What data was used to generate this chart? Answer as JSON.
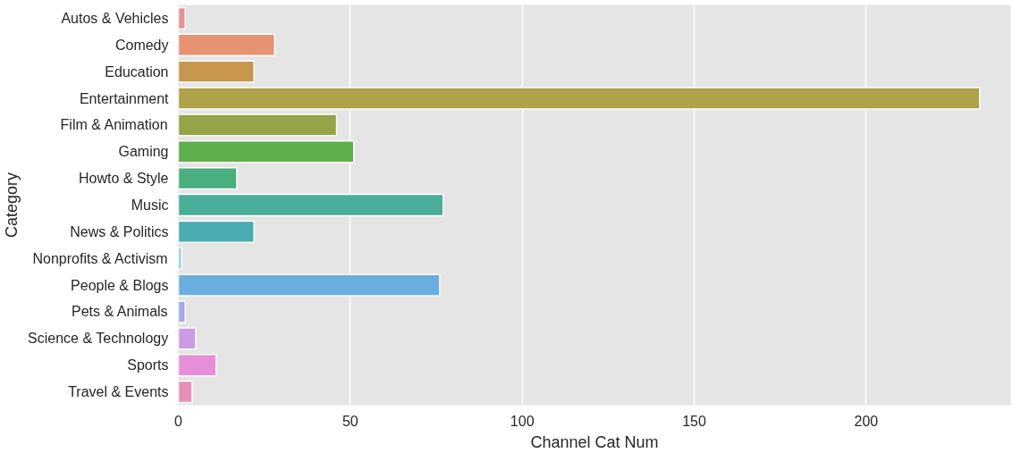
{
  "chart_data": {
    "type": "bar",
    "orientation": "horizontal",
    "xlabel": "Channel Cat Num",
    "ylabel": "Category",
    "categories": [
      "Autos & Vehicles",
      "Comedy",
      "Education",
      "Entertainment",
      "Film & Animation",
      "Gaming",
      "Howto & Style",
      "Music",
      "News & Politics",
      "Nonprofits & Activism",
      "People & Blogs",
      "Pets & Animals",
      "Science & Technology",
      "Sports",
      "Travel & Events"
    ],
    "values": [
      2,
      28,
      22,
      233,
      46,
      51,
      17,
      77,
      22,
      1,
      76,
      2,
      5,
      11,
      4
    ],
    "colors": [
      "#e8919c",
      "#e59372",
      "#c8964d",
      "#aea24a",
      "#94a446",
      "#5eae4a",
      "#4bae7f",
      "#4aae9b",
      "#4aabb0",
      "#8fd3e0",
      "#6aaee0",
      "#a9a6e9",
      "#cd9ae3",
      "#e58fd8",
      "#e591b7"
    ],
    "xlim": [
      0,
      242
    ],
    "xticks": [
      0,
      50,
      100,
      150,
      200
    ],
    "grid": "x"
  }
}
